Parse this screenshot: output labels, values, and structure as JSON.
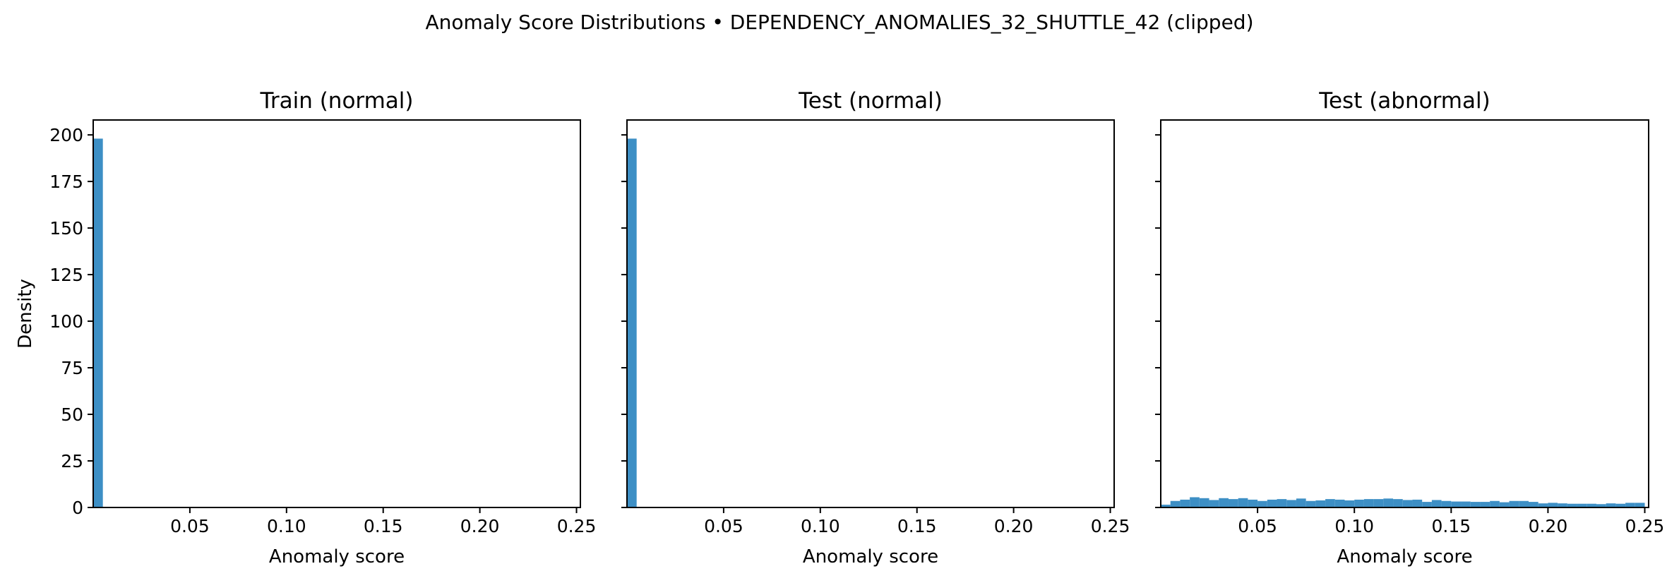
{
  "title": "Anomaly Score Distributions • DEPENDENCY_ANOMALIES_32_SHUTTLE_42 (clipped)",
  "colors": {
    "bar": "#3d8fc5",
    "axis": "#000000"
  },
  "chart_data": [
    {
      "type": "bar",
      "title": "Train (normal)",
      "xlabel": "Anomaly score",
      "ylabel": "Density",
      "xlim": [
        0.0,
        0.252
      ],
      "ylim": [
        0,
        208
      ],
      "xticks": [
        0.05,
        0.1,
        0.15,
        0.2,
        0.25
      ],
      "xtick_labels": [
        "0.05",
        "0.10",
        "0.15",
        "0.20",
        "0.25"
      ],
      "yticks": [
        0,
        25,
        50,
        75,
        100,
        125,
        150,
        175,
        200
      ],
      "ytick_labels": [
        "0",
        "25",
        "50",
        "75",
        "100",
        "125",
        "150",
        "175",
        "200"
      ],
      "bin_width": 0.005,
      "bin_start": 0.0,
      "values": [
        198
      ],
      "grid": false
    },
    {
      "type": "bar",
      "title": "Test (normal)",
      "xlabel": "Anomaly score",
      "ylabel": "",
      "xlim": [
        0.0,
        0.252
      ],
      "ylim": [
        0,
        208
      ],
      "xticks": [
        0.05,
        0.1,
        0.15,
        0.2,
        0.25
      ],
      "xtick_labels": [
        "0.05",
        "0.10",
        "0.15",
        "0.20",
        "0.25"
      ],
      "yticks": [
        0,
        25,
        50,
        75,
        100,
        125,
        150,
        175,
        200
      ],
      "ytick_labels": [],
      "bin_width": 0.005,
      "bin_start": 0.0,
      "values": [
        198
      ],
      "grid": false
    },
    {
      "type": "bar",
      "title": "Test (abnormal)",
      "xlabel": "Anomaly score",
      "ylabel": "",
      "xlim": [
        0.0,
        0.252
      ],
      "ylim": [
        0,
        208
      ],
      "xticks": [
        0.05,
        0.1,
        0.15,
        0.2,
        0.25
      ],
      "xtick_labels": [
        "0.05",
        "0.10",
        "0.15",
        "0.20",
        "0.25"
      ],
      "yticks": [
        0,
        25,
        50,
        75,
        100,
        125,
        150,
        175,
        200
      ],
      "ytick_labels": [],
      "bin_width": 0.005,
      "bin_start": 0.0,
      "values": [
        1.5,
        3.5,
        4.2,
        5.5,
        5.0,
        4.0,
        5.0,
        4.5,
        5.0,
        4.2,
        3.5,
        4.2,
        4.5,
        4.0,
        4.8,
        3.5,
        3.8,
        4.5,
        4.2,
        3.8,
        4.2,
        4.5,
        4.5,
        4.8,
        4.5,
        4.0,
        4.2,
        3.0,
        4.0,
        3.5,
        3.2,
        3.2,
        3.0,
        3.0,
        3.5,
        2.8,
        3.5,
        3.5,
        3.0,
        2.2,
        2.5,
        2.2,
        2.0,
        2.0,
        2.0,
        1.8,
        2.2,
        2.0,
        2.5,
        2.5
      ]
    }
  ]
}
